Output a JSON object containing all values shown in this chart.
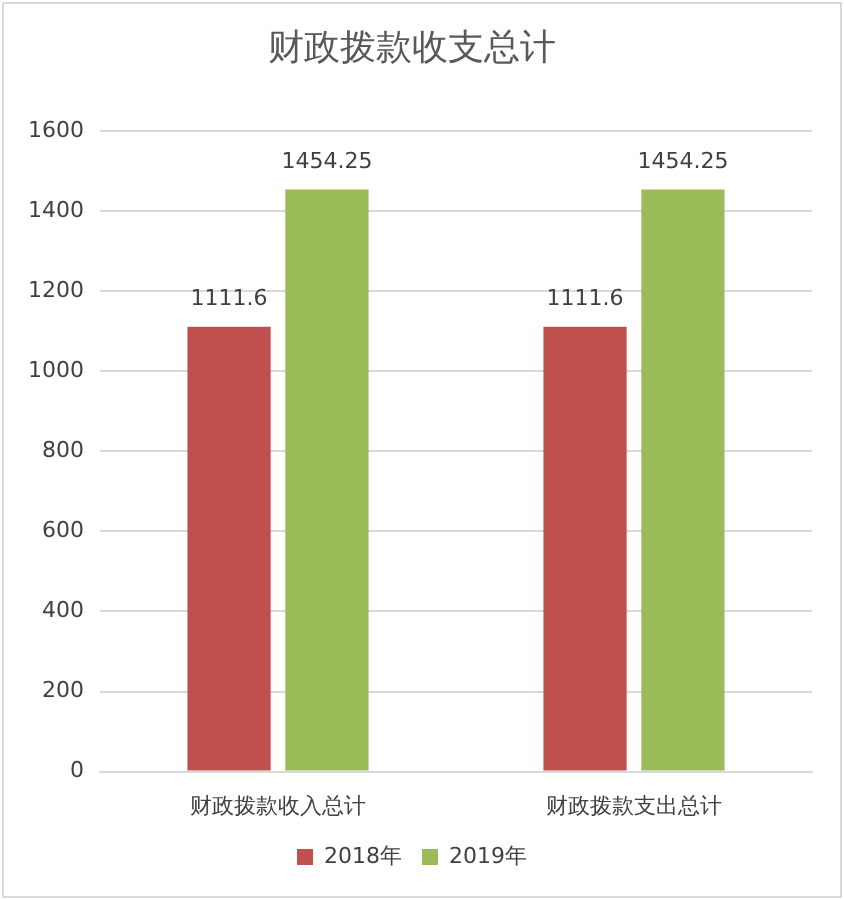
{
  "chart_data": {
    "type": "bar",
    "title": "财政拨款收支总计",
    "categories": [
      "财政拨款收入总计",
      "财政拨款支出总计"
    ],
    "series": [
      {
        "name": "2018年",
        "color": "#c0504d",
        "values": [
          1111.6,
          1111.6
        ]
      },
      {
        "name": "2019年",
        "color": "#9bbb59",
        "values": [
          1454.25,
          1454.25
        ]
      }
    ],
    "ylim": [
      0,
      1600
    ],
    "yticks": [
      0,
      200,
      400,
      600,
      800,
      1000,
      1200,
      1400,
      1600
    ],
    "grid": "y",
    "legend": "bottom",
    "data_labels": true
  }
}
